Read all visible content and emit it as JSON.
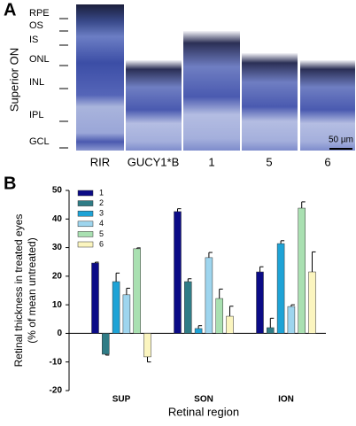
{
  "panel_a": {
    "label": "A",
    "side_label": "Superior ON",
    "layers": [
      "RPE",
      "OS",
      "IS",
      "ONL",
      "INL",
      "IPL",
      "GCL"
    ],
    "columns": [
      "RIR",
      "GUCY1*B",
      "1",
      "5",
      "6"
    ],
    "scale_bar": "50 µm"
  },
  "chart_data": {
    "type": "bar",
    "panel_label": "B",
    "y_label": [
      "Retinal thickness in treated eyes",
      "(% of mean untreated)"
    ],
    "x_label": "Retinal region",
    "categories": [
      "SUP",
      "SON",
      "ION"
    ],
    "series": [
      {
        "name": "1",
        "color": "#0b0b86",
        "values": [
          24.6,
          42.6,
          21.5
        ],
        "errors": [
          0.3,
          1.0,
          1.8
        ]
      },
      {
        "name": "2",
        "color": "#2f7c86",
        "values": [
          -7.3,
          18.1,
          2.0
        ],
        "errors": [
          0.3,
          1.0,
          3.3
        ]
      },
      {
        "name": "3",
        "color": "#1ea3d6",
        "values": [
          18.1,
          1.7,
          31.4
        ],
        "errors": [
          3.0,
          1.0,
          1.0
        ]
      },
      {
        "name": "4",
        "color": "#9ed5ee",
        "values": [
          13.5,
          26.5,
          9.4
        ],
        "errors": [
          2.3,
          1.8,
          0.6
        ]
      },
      {
        "name": "5",
        "color": "#a9e0b1",
        "values": [
          29.6,
          12.2,
          43.8
        ],
        "errors": [
          0.3,
          3.3,
          2.2
        ]
      },
      {
        "name": "6",
        "color": "#fbf5bf",
        "values": [
          -8.2,
          6.0,
          21.5
        ],
        "errors": [
          1.8,
          3.5,
          7.0
        ]
      }
    ],
    "ylim": [
      -20,
      50
    ],
    "yticks": [
      -20,
      -10,
      0,
      10,
      20,
      30,
      40,
      50
    ]
  }
}
